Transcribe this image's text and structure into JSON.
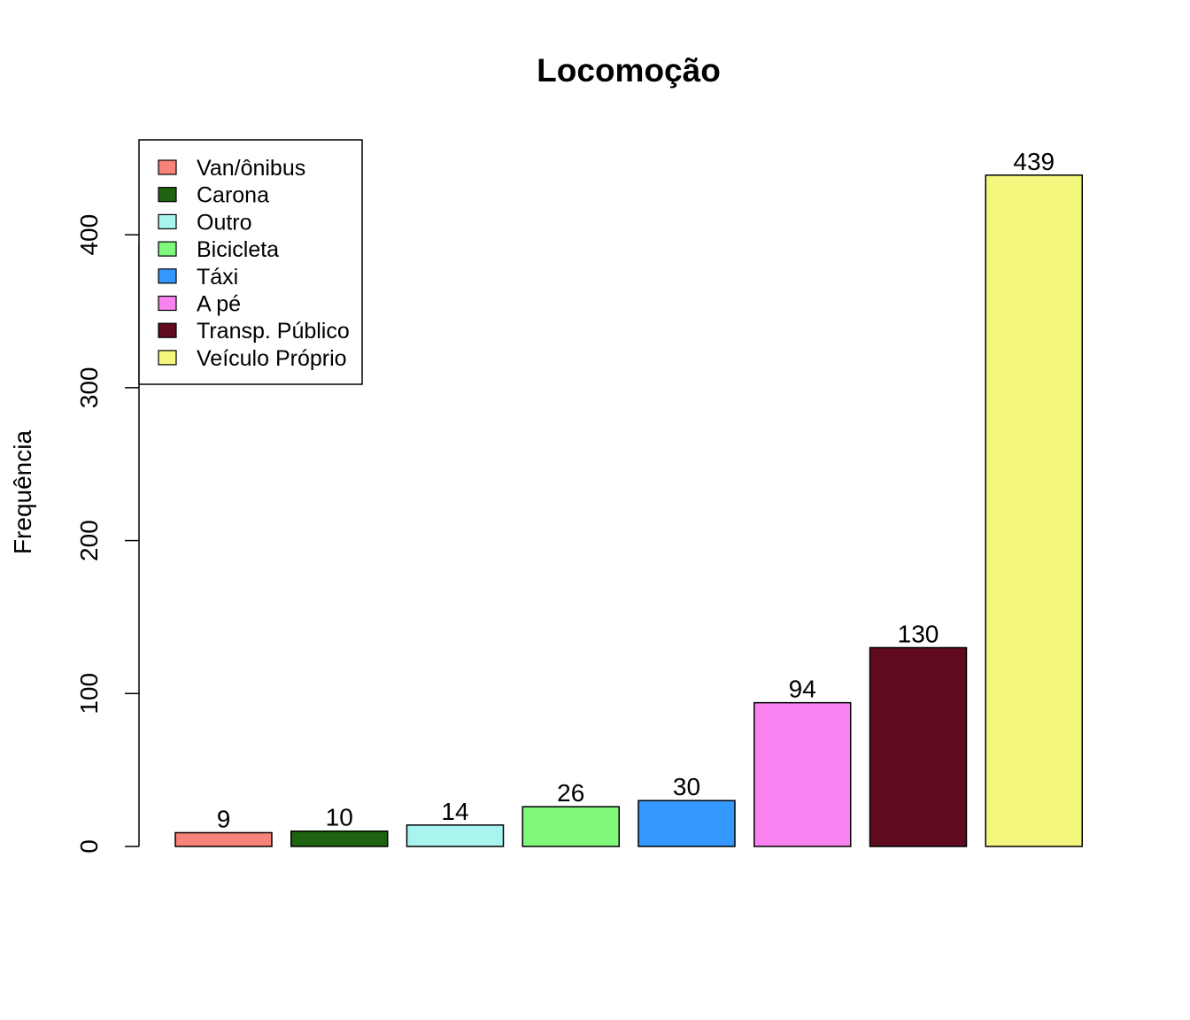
{
  "chart_data": {
    "type": "bar",
    "title": "Locomoção",
    "xlabel": "",
    "ylabel": "Frequência",
    "ylim": [
      0,
      469
    ],
    "yticks": [
      0,
      100,
      200,
      300,
      400
    ],
    "grid": false,
    "legend_position": "top-left",
    "categories": [
      "Van/ônibus",
      "Carona",
      "Outro",
      "Bicicleta",
      "Táxi",
      "A pé",
      "Transp. Público",
      "Veículo Próprio"
    ],
    "values": [
      9,
      10,
      14,
      26,
      30,
      94,
      130,
      439
    ],
    "colors": [
      "#F8837B",
      "#1E6410",
      "#A8F5F0",
      "#80F87C",
      "#3399FF",
      "#F883F0",
      "#600B20",
      "#F3F77D"
    ]
  }
}
